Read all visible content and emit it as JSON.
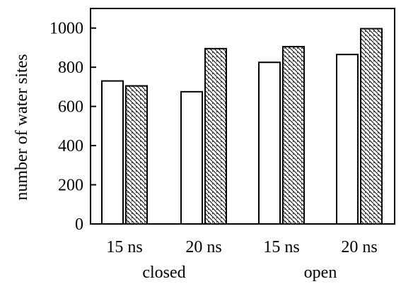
{
  "chart_data": {
    "type": "bar",
    "title": "",
    "xlabel": "",
    "ylabel": "number of water sites",
    "ylim": [
      0,
      1100
    ],
    "yticks": [
      0,
      200,
      400,
      600,
      800,
      1000
    ],
    "grid": false,
    "legend": "none",
    "categories": [
      "15 ns",
      "20 ns",
      "15 ns",
      "20 ns"
    ],
    "groups": [
      {
        "label": "closed",
        "categories": [
          0,
          1
        ]
      },
      {
        "label": "open",
        "categories": [
          2,
          3
        ]
      }
    ],
    "series": [
      {
        "fill": "white",
        "values": [
          730,
          675,
          825,
          865
        ]
      },
      {
        "fill": "hatched",
        "values": [
          705,
          895,
          905,
          997
        ]
      }
    ]
  }
}
